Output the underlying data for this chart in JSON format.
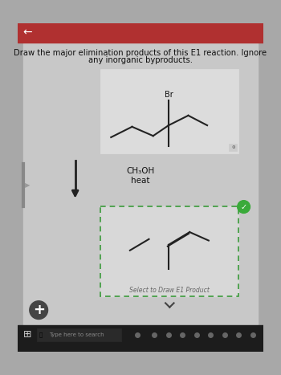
{
  "background_color": "#a8a8a8",
  "top_bar_color": "#b03030",
  "content_bg": "#c8c8c8",
  "title_text_line1": "Draw the major elimination products of this E1 reaction. Ignore",
  "title_text_line2": "any inorganic byproducts.",
  "title_fontsize": 7.2,
  "reagent_text1": "CH₃OH",
  "reagent_text2": "heat",
  "reagent_fontsize": 7.5,
  "br_label": "Br",
  "select_text": "Select to Draw E1 Product",
  "select_fontsize": 5.5,
  "dashed_box_color": "#3a9a3a",
  "check_color": "#3aaa3a",
  "arrow_color": "#222222",
  "line_color": "#222222",
  "react_box_color": "#dcdcdc",
  "react_box_edge": "#c0c0c0",
  "product_box_bg": "#d8d8d8"
}
